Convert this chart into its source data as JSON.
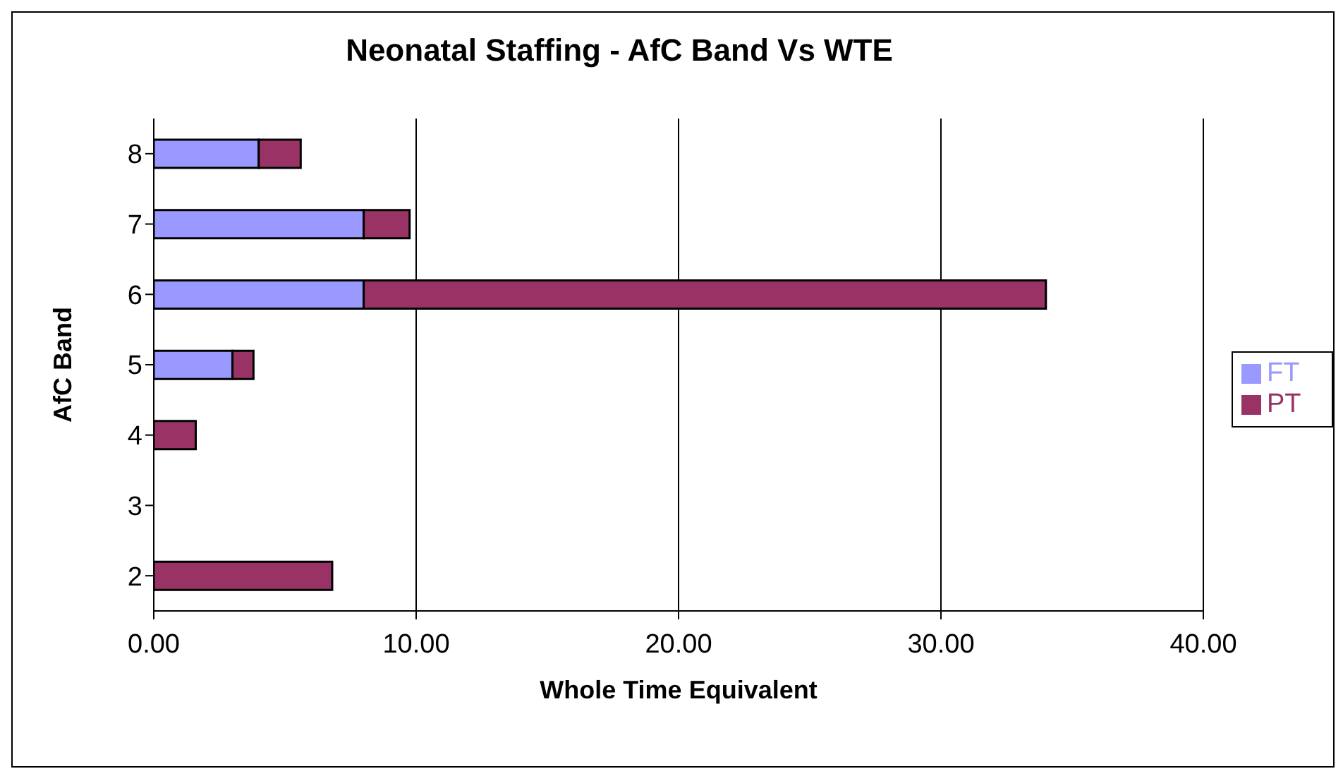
{
  "chart_data": {
    "type": "bar",
    "orientation": "horizontal",
    "stacked": true,
    "title": "Neonatal Staffing - AfC Band Vs WTE",
    "xlabel": "Whole Time Equivalent",
    "ylabel": "AfC Band",
    "categories": [
      "8",
      "7",
      "6",
      "5",
      "4",
      "3",
      "2"
    ],
    "series": [
      {
        "name": "FT",
        "color": "#9999ff",
        "values": [
          4.0,
          8.0,
          8.0,
          3.0,
          null,
          null,
          null
        ]
      },
      {
        "name": "PT",
        "color": "#993366",
        "values": [
          1.6,
          1.75,
          26.0,
          0.8,
          1.6,
          null,
          6.8
        ]
      }
    ],
    "xlim": [
      0,
      40
    ],
    "xticks": [
      {
        "value": 0,
        "label": "0.00"
      },
      {
        "value": 10,
        "label": "10.00"
      },
      {
        "value": 20,
        "label": "20.00"
      },
      {
        "value": 30,
        "label": "30.00"
      },
      {
        "value": 40,
        "label": "40.00"
      }
    ],
    "grid": "x",
    "legend": "right"
  }
}
